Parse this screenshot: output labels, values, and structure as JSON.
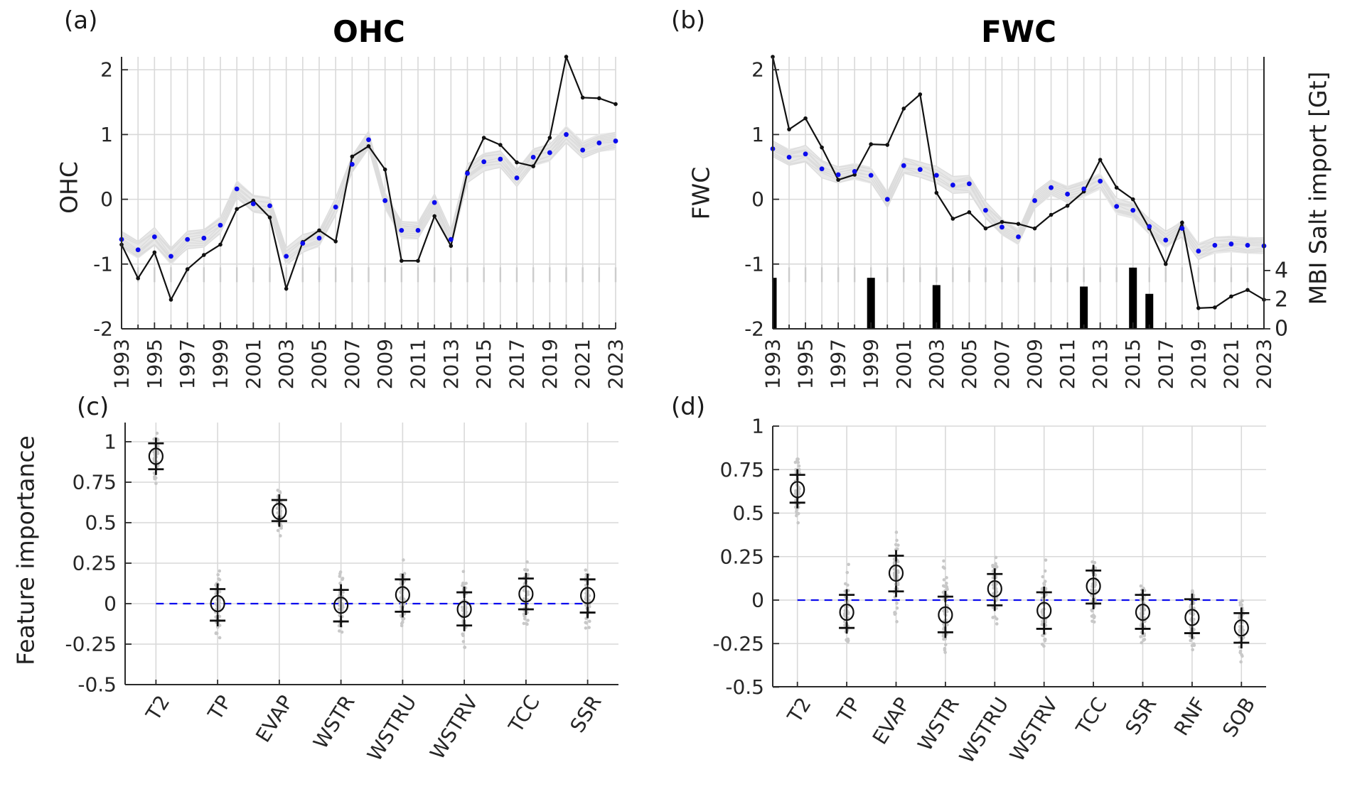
{
  "figure": {
    "background": "#ffffff"
  },
  "colors": {
    "black_series": "#111111",
    "blue_series": "#0b0bee",
    "ensemble_band": "#e8e8e8",
    "ensemble_line": "#dcdcdc",
    "scatter_dot": "#c8c8c8",
    "gridline": "#d9d9d9",
    "minor_dash": "#cccccc",
    "axis": "#2b2b2b",
    "bar": "#000000",
    "zero_line": "#0b0bee"
  },
  "panels": {
    "a": {
      "letter": "(a)",
      "title": "OHC",
      "ylabel": "OHC"
    },
    "b": {
      "letter": "(b)",
      "title": "FWC",
      "ylabel": "FWC",
      "right_ylabel": "MBI Salt import [Gt]"
    },
    "c": {
      "letter": "(c)",
      "ylabel": "Feature importance"
    },
    "d": {
      "letter": "(d)"
    }
  },
  "chart_data": [
    {
      "id": "a",
      "type": "line",
      "title": "OHC",
      "ylabel": "OHC",
      "x_years": [
        1993,
        1994,
        1995,
        1996,
        1997,
        1998,
        1999,
        2000,
        2001,
        2002,
        2003,
        2004,
        2005,
        2006,
        2007,
        2008,
        2009,
        2010,
        2011,
        2012,
        2013,
        2014,
        2015,
        2016,
        2017,
        2018,
        2019,
        2020,
        2021,
        2022,
        2023
      ],
      "xtick_labels": [
        "1993",
        "1995",
        "1997",
        "1999",
        "2001",
        "2003",
        "2005",
        "2007",
        "2009",
        "2011",
        "2013",
        "2015",
        "2017",
        "2019",
        "2021",
        "2023"
      ],
      "ylim": [
        -2,
        2.2
      ],
      "yticks": [
        2,
        1,
        0,
        -1,
        -2
      ],
      "ytick_labels": [
        "2",
        "1",
        "0",
        "-1",
        "-2"
      ],
      "grid": true,
      "series": [
        {
          "name": "ohc-observed",
          "marker": "point",
          "color": "#111111",
          "values": [
            -0.7,
            -1.22,
            -0.82,
            -1.55,
            -1.08,
            -0.86,
            -0.7,
            -0.15,
            -0.02,
            -0.28,
            -1.38,
            -0.66,
            -0.48,
            -0.65,
            0.66,
            0.82,
            0.46,
            -0.95,
            -0.95,
            -0.26,
            -0.72,
            0.42,
            0.95,
            0.84,
            0.57,
            0.51,
            0.95,
            2.2,
            1.57,
            1.56,
            1.47
          ]
        },
        {
          "name": "ohc-ensemble-mean",
          "marker": "dot",
          "color": "#0b0bee",
          "values": [
            -0.62,
            -0.78,
            -0.58,
            -0.88,
            -0.62,
            -0.6,
            -0.4,
            0.16,
            -0.07,
            -0.1,
            -0.88,
            -0.68,
            -0.6,
            -0.12,
            0.54,
            0.92,
            -0.02,
            -0.48,
            -0.48,
            -0.05,
            -0.62,
            0.4,
            0.58,
            0.62,
            0.33,
            0.65,
            0.72,
            1.0,
            0.76,
            0.87,
            0.9
          ]
        }
      ],
      "ensemble_band": {
        "halfwidth": 0.14,
        "color": "#e8e8e8",
        "n_members": 9
      }
    },
    {
      "id": "b",
      "type": "line",
      "title": "FWC",
      "ylabel": "FWC",
      "x_years": [
        1993,
        1994,
        1995,
        1996,
        1997,
        1998,
        1999,
        2000,
        2001,
        2002,
        2003,
        2004,
        2005,
        2006,
        2007,
        2008,
        2009,
        2010,
        2011,
        2012,
        2013,
        2014,
        2015,
        2016,
        2017,
        2018,
        2019,
        2020,
        2021,
        2022,
        2023
      ],
      "xtick_labels": [
        "1993",
        "1995",
        "1997",
        "1999",
        "2001",
        "2003",
        "2005",
        "2007",
        "2009",
        "2011",
        "2013",
        "2015",
        "2017",
        "2019",
        "2021",
        "2023"
      ],
      "ylim": [
        -2,
        2.2
      ],
      "yticks": [
        2,
        1,
        0,
        -1,
        -2
      ],
      "ytick_labels": [
        "2",
        "1",
        "0",
        "-1",
        "-2"
      ],
      "grid": true,
      "series": [
        {
          "name": "fwc-observed",
          "marker": "point",
          "color": "#111111",
          "values": [
            2.2,
            1.08,
            1.25,
            0.8,
            0.3,
            0.38,
            0.85,
            0.84,
            1.4,
            1.62,
            0.1,
            -0.3,
            -0.2,
            -0.45,
            -0.35,
            -0.38,
            -0.45,
            -0.24,
            -0.1,
            0.12,
            0.61,
            0.18,
            0.0,
            -0.45,
            -1.0,
            -0.36,
            -1.68,
            -1.67,
            -1.5,
            -1.4,
            -1.55
          ]
        },
        {
          "name": "fwc-ensemble-mean",
          "marker": "dot",
          "color": "#0b0bee",
          "values": [
            0.78,
            0.65,
            0.7,
            0.47,
            0.38,
            0.43,
            0.37,
            0.0,
            0.52,
            0.46,
            0.37,
            0.22,
            0.24,
            -0.17,
            -0.43,
            -0.58,
            -0.02,
            0.18,
            0.08,
            0.16,
            0.28,
            -0.11,
            -0.17,
            -0.42,
            -0.63,
            -0.45,
            -0.8,
            -0.71,
            -0.69,
            -0.71,
            -0.72
          ]
        }
      ],
      "ensemble_band": {
        "halfwidth": 0.13,
        "color": "#e8e8e8",
        "n_members": 9
      },
      "bars": {
        "name": "mbi-salt-import",
        "color": "#000000",
        "years": [
          1993,
          1999,
          2003,
          2012,
          2015,
          2016
        ],
        "values_gt": [
          3.5,
          3.5,
          3.0,
          2.9,
          4.2,
          2.4
        ]
      },
      "right_axis": {
        "label": "MBI Salt import [Gt]",
        "ticks": [
          0,
          2,
          4
        ],
        "tick_labels": [
          "0",
          "2",
          "4"
        ],
        "gt_max_at_fwc": -1.1
      }
    },
    {
      "id": "c",
      "type": "scatter",
      "ylabel": "Feature importance",
      "categories": [
        "T2",
        "TP",
        "EVAP",
        "WSTR",
        "WSTRU",
        "WSTRV",
        "TCC",
        "SSR"
      ],
      "mean": [
        0.91,
        0.0,
        0.57,
        -0.01,
        0.055,
        -0.035,
        0.06,
        0.05
      ],
      "plus_upper": [
        0.99,
        0.09,
        0.64,
        0.085,
        0.15,
        0.07,
        0.155,
        0.15
      ],
      "plus_lower": [
        0.83,
        -0.105,
        0.51,
        -0.11,
        -0.05,
        -0.135,
        -0.035,
        -0.055
      ],
      "scatter_min": [
        0.73,
        -0.25,
        0.4,
        -0.255,
        -0.175,
        -0.27,
        -0.19,
        -0.175
      ],
      "scatter_max": [
        1.08,
        0.235,
        0.75,
        0.235,
        0.27,
        0.285,
        0.305,
        0.3
      ],
      "ylim": [
        -0.5,
        1.12
      ],
      "yticks": [
        1,
        0.75,
        0.5,
        0.25,
        0,
        -0.25,
        -0.5
      ],
      "ytick_labels": [
        "1",
        "0.75",
        "0.5",
        "0.25",
        "0",
        "-0.25",
        "-0.5"
      ],
      "zero_line": true
    },
    {
      "id": "d",
      "type": "scatter",
      "categories": [
        "T2",
        "TP",
        "EVAP",
        "WSTR",
        "WSTRU",
        "WSTRV",
        "TCC",
        "SSR",
        "RNF",
        "SOB"
      ],
      "mean": [
        0.635,
        -0.07,
        0.155,
        -0.085,
        0.065,
        -0.06,
        0.08,
        -0.07,
        -0.1,
        -0.16
      ],
      "plus_upper": [
        0.72,
        0.03,
        0.255,
        0.02,
        0.15,
        0.045,
        0.17,
        0.03,
        0.005,
        -0.075
      ],
      "plus_lower": [
        0.56,
        -0.16,
        0.05,
        -0.185,
        -0.03,
        -0.165,
        -0.02,
        -0.165,
        -0.19,
        -0.245
      ],
      "scatter_min": [
        0.4,
        -0.26,
        -0.16,
        -0.345,
        -0.19,
        -0.265,
        -0.165,
        -0.245,
        -0.285,
        -0.355
      ],
      "scatter_max": [
        0.81,
        0.205,
        0.39,
        0.225,
        0.245,
        0.265,
        0.315,
        0.205,
        0.155,
        0.04
      ],
      "ylim": [
        -0.5,
        1.0
      ],
      "yticks": [
        1,
        0.75,
        0.5,
        0.25,
        0,
        -0.25,
        -0.5
      ],
      "ytick_labels": [
        "1",
        "0.75",
        "0.5",
        "0.25",
        "0",
        "-0.25",
        "-0.5"
      ],
      "zero_line": true
    }
  ]
}
